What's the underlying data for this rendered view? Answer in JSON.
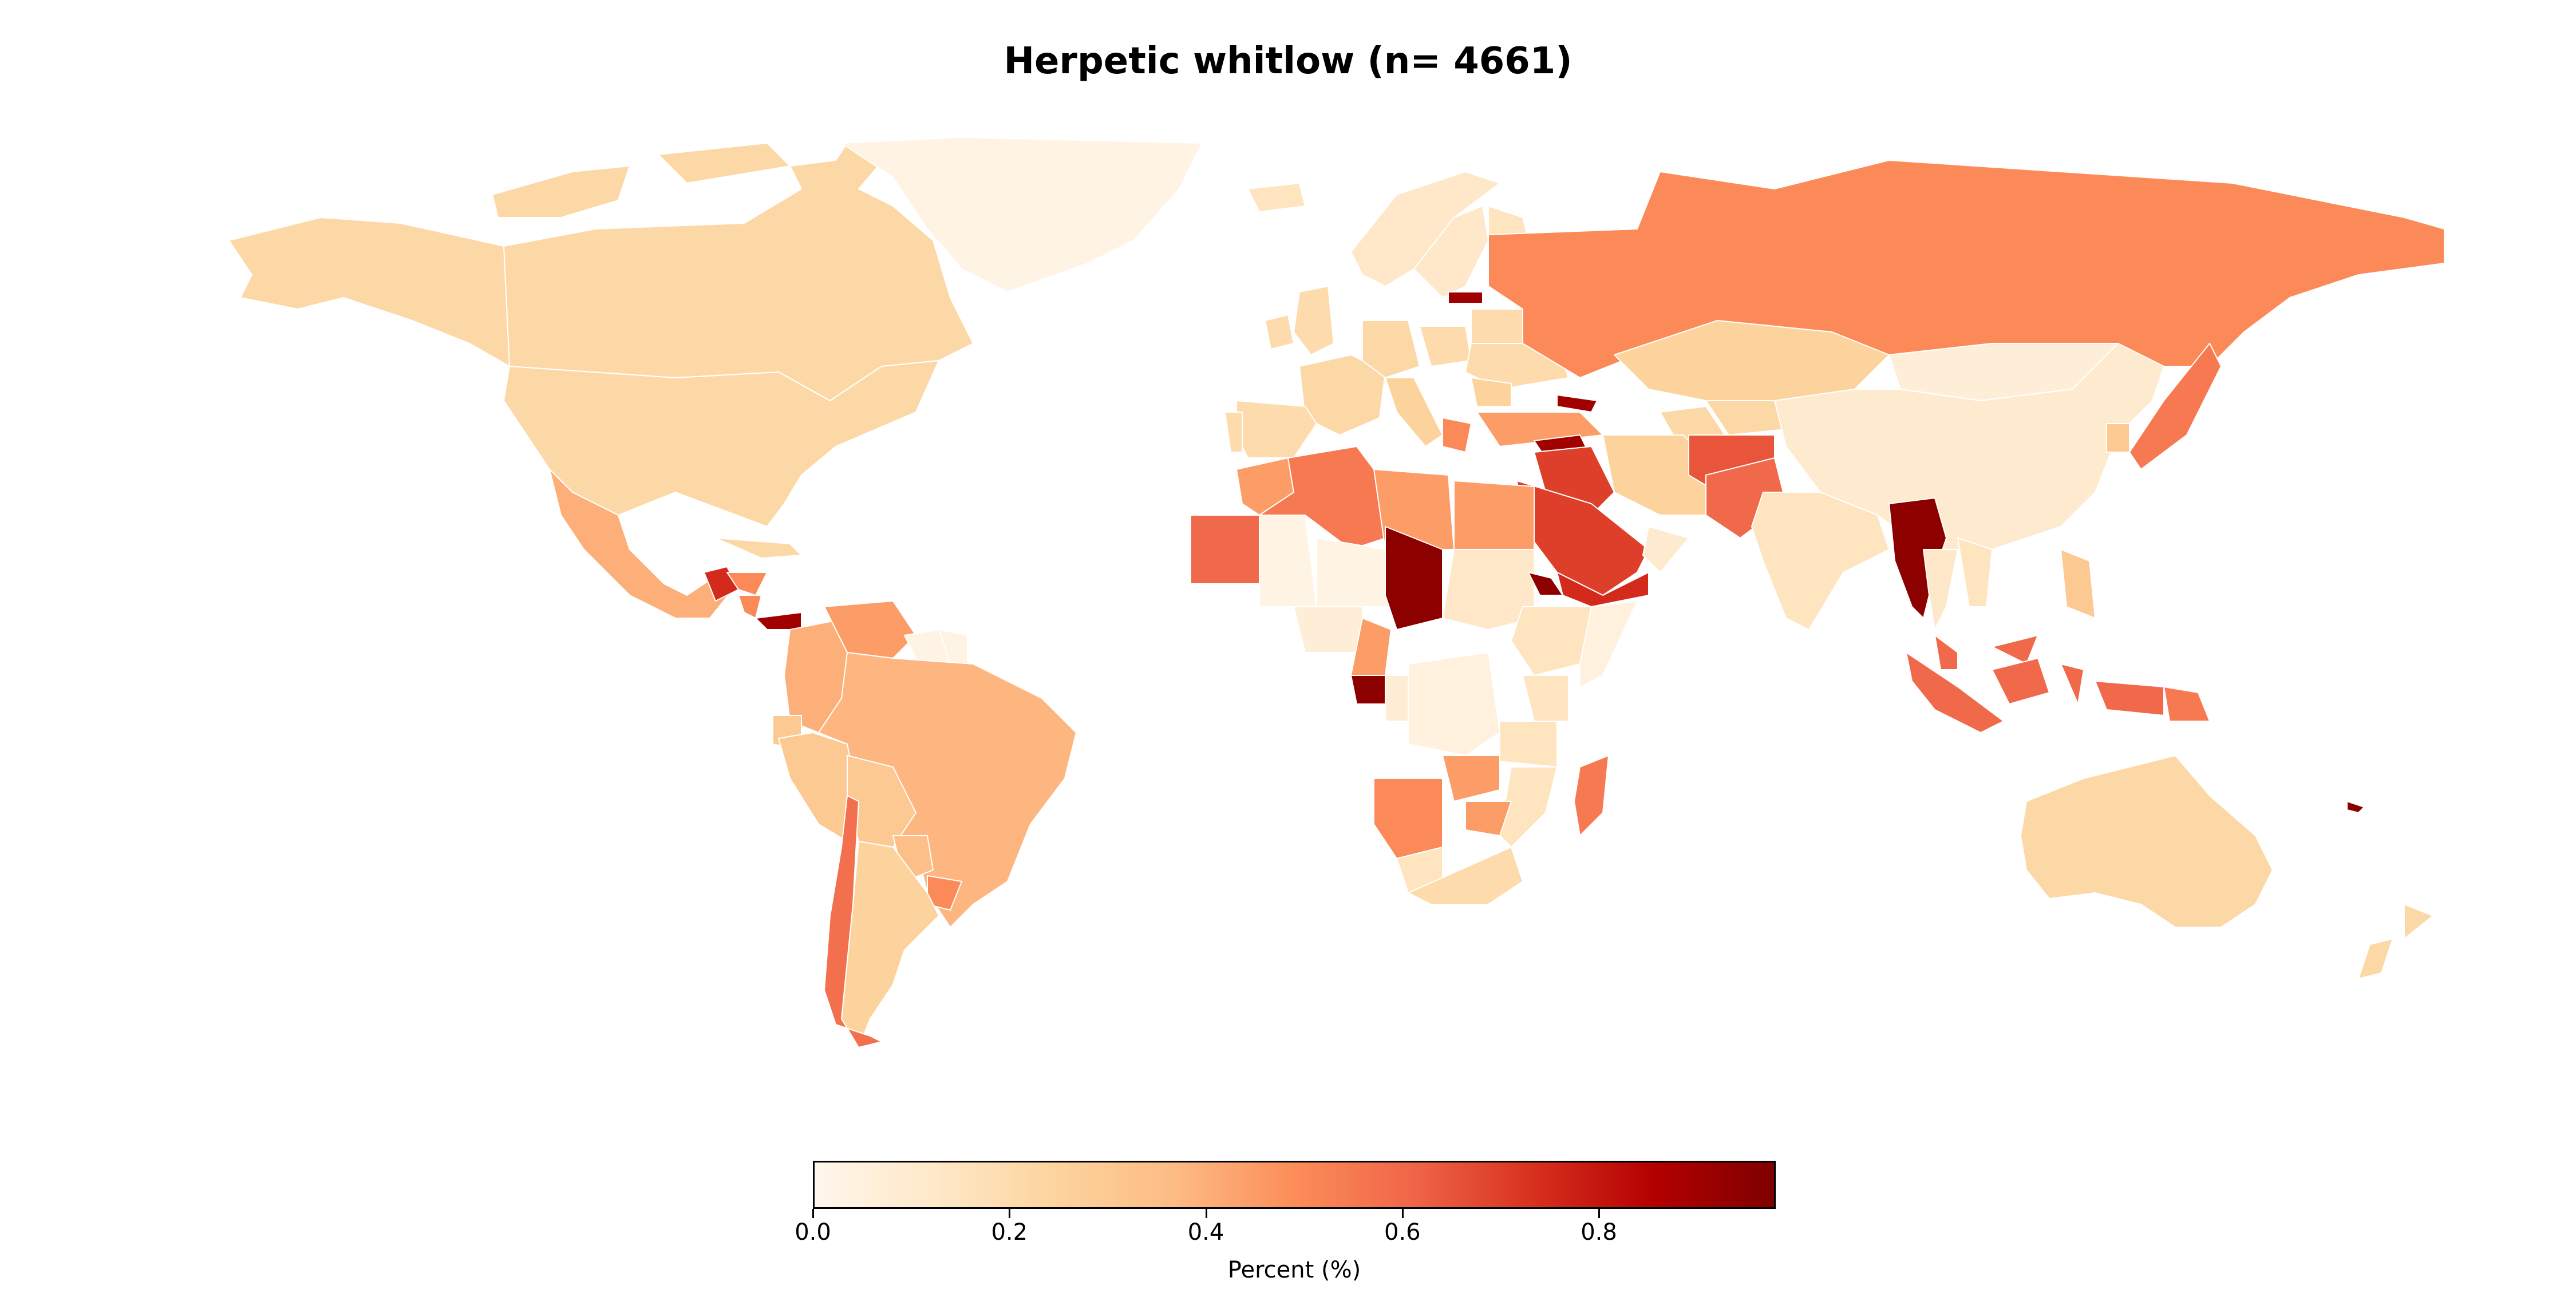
{
  "title": "Herpetic whitlow (n= 4661)",
  "colorbar": {
    "label": "Percent (%)",
    "ticks": [
      "0.0",
      "0.2",
      "0.4",
      "0.6",
      "0.8"
    ],
    "tick_values": [
      0.0,
      0.2,
      0.4,
      0.6,
      0.8
    ],
    "range": [
      0.0,
      0.98
    ],
    "colormap": "OrRd",
    "stops": [
      "#fff7ec",
      "#fee8c8",
      "#fdd49e",
      "#fdbb84",
      "#fc8d59",
      "#ef6548",
      "#d7301f",
      "#b30000",
      "#7f0000"
    ]
  },
  "chart_data": {
    "type": "choropleth",
    "title": "Herpetic whitlow (n= 4661)",
    "value_label": "Percent (%)",
    "range": [
      0.0,
      0.98
    ],
    "regions": [
      {
        "name": "Canada",
        "value": 0.22
      },
      {
        "name": "United States",
        "value": 0.22
      },
      {
        "name": "Greenland",
        "value": 0.03
      },
      {
        "name": "Alaska",
        "value": 0.22
      },
      {
        "name": "Mexico",
        "value": 0.4
      },
      {
        "name": "Guatemala",
        "value": 0.75
      },
      {
        "name": "Honduras",
        "value": 0.5
      },
      {
        "name": "Nicaragua",
        "value": 0.5
      },
      {
        "name": "Panama",
        "value": 0.9
      },
      {
        "name": "Cuba",
        "value": 0.22
      },
      {
        "name": "Colombia",
        "value": 0.4
      },
      {
        "name": "Venezuela",
        "value": 0.45
      },
      {
        "name": "Guyana",
        "value": 0.03
      },
      {
        "name": "Suriname",
        "value": 0.03
      },
      {
        "name": "Brazil",
        "value": 0.38
      },
      {
        "name": "Ecuador",
        "value": 0.3
      },
      {
        "name": "Peru",
        "value": 0.3
      },
      {
        "name": "Bolivia",
        "value": 0.3
      },
      {
        "name": "Paraguay",
        "value": 0.35
      },
      {
        "name": "Uruguay",
        "value": 0.5
      },
      {
        "name": "Argentina",
        "value": 0.25
      },
      {
        "name": "Chile",
        "value": 0.58
      },
      {
        "name": "Iceland",
        "value": 0.15
      },
      {
        "name": "Norway",
        "value": 0.12
      },
      {
        "name": "Sweden",
        "value": 0.12
      },
      {
        "name": "Finland",
        "value": 0.15
      },
      {
        "name": "United Kingdom",
        "value": 0.2
      },
      {
        "name": "Ireland",
        "value": 0.2
      },
      {
        "name": "France",
        "value": 0.22
      },
      {
        "name": "Spain",
        "value": 0.2
      },
      {
        "name": "Portugal",
        "value": 0.2
      },
      {
        "name": "Germany",
        "value": 0.22
      },
      {
        "name": "Poland",
        "value": 0.2
      },
      {
        "name": "Italy",
        "value": 0.25
      },
      {
        "name": "Ukraine",
        "value": 0.2
      },
      {
        "name": "Belarus",
        "value": 0.2
      },
      {
        "name": "Latvia",
        "value": 0.9
      },
      {
        "name": "Romania",
        "value": 0.25
      },
      {
        "name": "Greece",
        "value": 0.5
      },
      {
        "name": "Turkey",
        "value": 0.45
      },
      {
        "name": "Georgia",
        "value": 0.9
      },
      {
        "name": "Russia",
        "value": 0.5
      },
      {
        "name": "Kazakhstan",
        "value": 0.25
      },
      {
        "name": "Uzbekistan",
        "value": 0.22
      },
      {
        "name": "Turkmenistan",
        "value": 0.22
      },
      {
        "name": "Mongolia",
        "value": 0.07
      },
      {
        "name": "China",
        "value": 0.1
      },
      {
        "name": "Japan",
        "value": 0.55
      },
      {
        "name": "South Korea",
        "value": 0.3
      },
      {
        "name": "Syria",
        "value": 0.9
      },
      {
        "name": "Iraq",
        "value": 0.7
      },
      {
        "name": "Iran",
        "value": 0.25
      },
      {
        "name": "Saudi Arabia",
        "value": 0.7
      },
      {
        "name": "Yemen",
        "value": 0.75
      },
      {
        "name": "Oman",
        "value": 0.1
      },
      {
        "name": "Afghanistan",
        "value": 0.65
      },
      {
        "name": "Pakistan",
        "value": 0.6
      },
      {
        "name": "India",
        "value": 0.15
      },
      {
        "name": "Myanmar",
        "value": 0.95
      },
      {
        "name": "Thailand",
        "value": 0.12
      },
      {
        "name": "Vietnam",
        "value": 0.15
      },
      {
        "name": "Philippines",
        "value": 0.3
      },
      {
        "name": "Malaysia",
        "value": 0.6
      },
      {
        "name": "Indonesia",
        "value": 0.6
      },
      {
        "name": "Papua New Guinea",
        "value": 0.55
      },
      {
        "name": "Solomon Islands",
        "value": 0.95
      },
      {
        "name": "Australia",
        "value": 0.22
      },
      {
        "name": "New Zealand",
        "value": 0.22
      },
      {
        "name": "Morocco",
        "value": 0.45
      },
      {
        "name": "Algeria",
        "value": 0.55
      },
      {
        "name": "Libya",
        "value": 0.45
      },
      {
        "name": "Egypt",
        "value": 0.45
      },
      {
        "name": "Mauritania",
        "value": 0.6
      },
      {
        "name": "Mali",
        "value": 0.03
      },
      {
        "name": "Niger",
        "value": 0.03
      },
      {
        "name": "Chad",
        "value": 0.95
      },
      {
        "name": "Sudan",
        "value": 0.12
      },
      {
        "name": "Eritrea",
        "value": 0.95
      },
      {
        "name": "Ethiopia",
        "value": 0.15
      },
      {
        "name": "Somalia",
        "value": 0.05
      },
      {
        "name": "Nigeria",
        "value": 0.07
      },
      {
        "name": "Cameroon",
        "value": 0.45
      },
      {
        "name": "Gabon",
        "value": 0.95
      },
      {
        "name": "Congo",
        "value": 0.08
      },
      {
        "name": "DR Congo",
        "value": 0.05
      },
      {
        "name": "Kenya",
        "value": 0.15
      },
      {
        "name": "Tanzania",
        "value": 0.15
      },
      {
        "name": "Angola",
        "value": 0.5
      },
      {
        "name": "Zambia",
        "value": 0.45
      },
      {
        "name": "Mozambique",
        "value": 0.15
      },
      {
        "name": "Zimbabwe",
        "value": 0.45
      },
      {
        "name": "Namibia",
        "value": 0.15
      },
      {
        "name": "South Africa",
        "value": 0.2
      },
      {
        "name": "Madagascar",
        "value": 0.55
      }
    ]
  }
}
